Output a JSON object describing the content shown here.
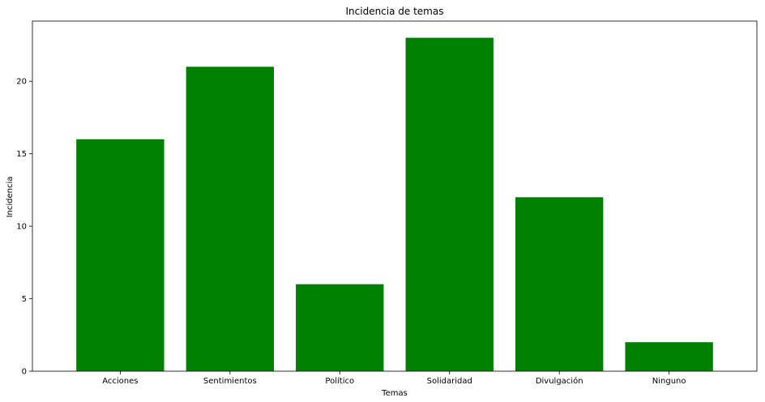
{
  "chart_data": {
    "type": "bar",
    "title": "Incidencia de temas",
    "xlabel": "Temas",
    "ylabel": "Incidencia",
    "categories": [
      "Acciones",
      "Sentimientos",
      "Político",
      "Solidaridad",
      "Divulgación",
      "Ninguno"
    ],
    "values": [
      16,
      21,
      6,
      23,
      12,
      2
    ],
    "ylim": [
      0,
      24.15
    ],
    "yticks": [
      0,
      5,
      10,
      15,
      20
    ],
    "bar_color": "#008000",
    "grid": false,
    "legend": "none"
  }
}
